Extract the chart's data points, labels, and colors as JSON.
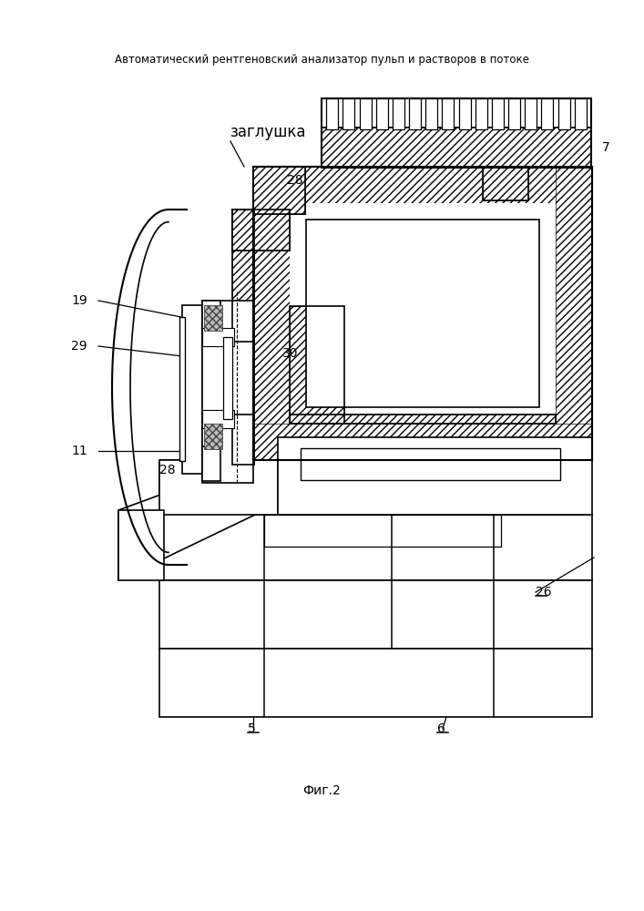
{
  "title": "Автоматический рентгеновский анализатор пульп и растворов в потоке",
  "fig_label": "Фиг.2",
  "bg_color": "#ffffff",
  "line_color": "#000000",
  "labels": {
    "zaglusha": "заглушка",
    "7": "7",
    "19": "19",
    "29": "29",
    "11": "11",
    "28a": "28",
    "28b": "28",
    "30": "30",
    "5": "5",
    "6": "6",
    "26": "26"
  }
}
